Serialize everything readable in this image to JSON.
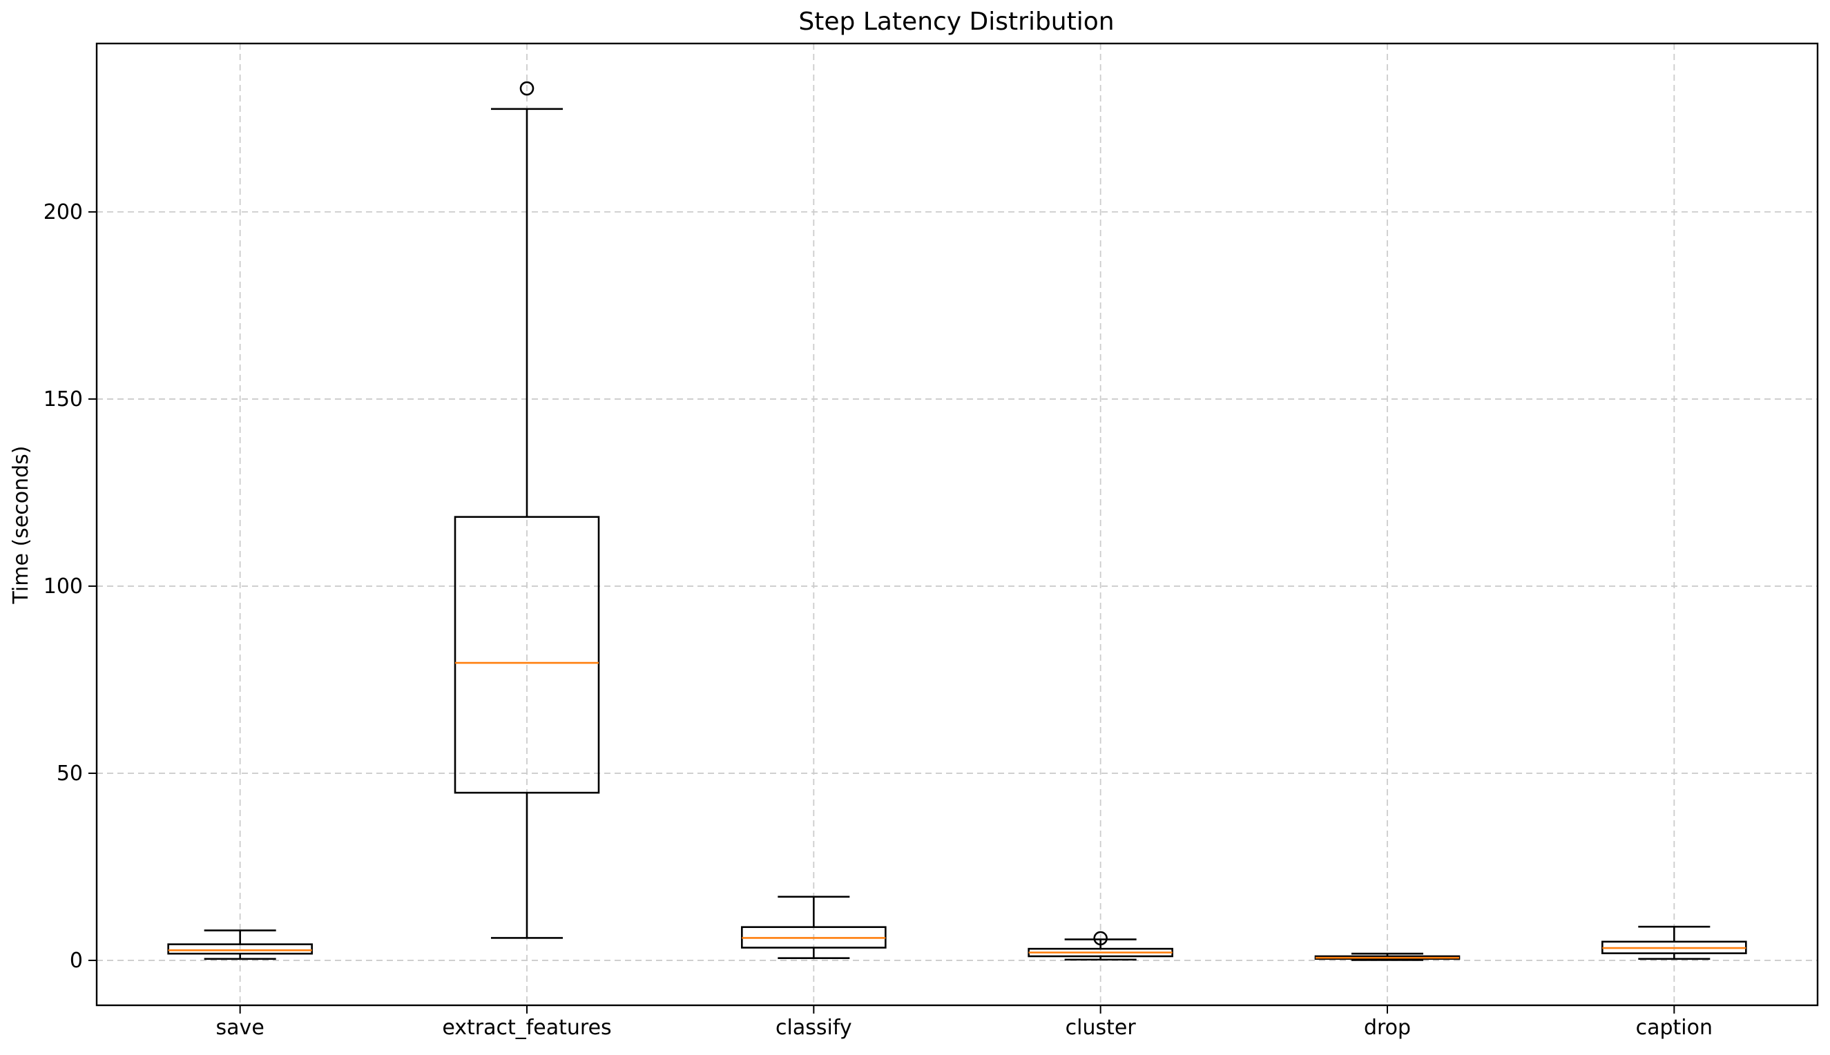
{
  "chart_data": {
    "type": "box",
    "title": "Step Latency Distribution",
    "xlabel": "",
    "ylabel": "Time (seconds)",
    "ylim": [
      -12,
      245
    ],
    "yticks": [
      0,
      50,
      100,
      150,
      200
    ],
    "grid": true,
    "colors": {
      "box_edge": "#000000",
      "median": "#ff7f0e",
      "grid": "#cccccc"
    },
    "categories": [
      "save",
      "extract_features",
      "classify",
      "cluster",
      "drop",
      "caption"
    ],
    "boxes": [
      {
        "label": "save",
        "whisker_low": 0.4,
        "q1": 1.8,
        "median": 2.7,
        "q3": 4.3,
        "whisker_high": 8.0,
        "outliers": []
      },
      {
        "label": "extract_features",
        "whisker_low": 6.0,
        "q1": 44.8,
        "median": 79.5,
        "q3": 118.5,
        "whisker_high": 227.5,
        "outliers": [
          233.0
        ]
      },
      {
        "label": "classify",
        "whisker_low": 0.6,
        "q1": 3.4,
        "median": 6.0,
        "q3": 8.9,
        "whisker_high": 17.0,
        "outliers": []
      },
      {
        "label": "cluster",
        "whisker_low": 0.2,
        "q1": 1.1,
        "median": 2.1,
        "q3": 3.1,
        "whisker_high": 5.6,
        "outliers": [
          5.9
        ]
      },
      {
        "label": "drop",
        "whisker_low": 0.1,
        "q1": 0.4,
        "median": 0.7,
        "q3": 1.1,
        "whisker_high": 1.8,
        "outliers": []
      },
      {
        "label": "caption",
        "whisker_low": 0.4,
        "q1": 1.9,
        "median": 3.3,
        "q3": 5.0,
        "whisker_high": 9.0,
        "outliers": []
      }
    ]
  }
}
